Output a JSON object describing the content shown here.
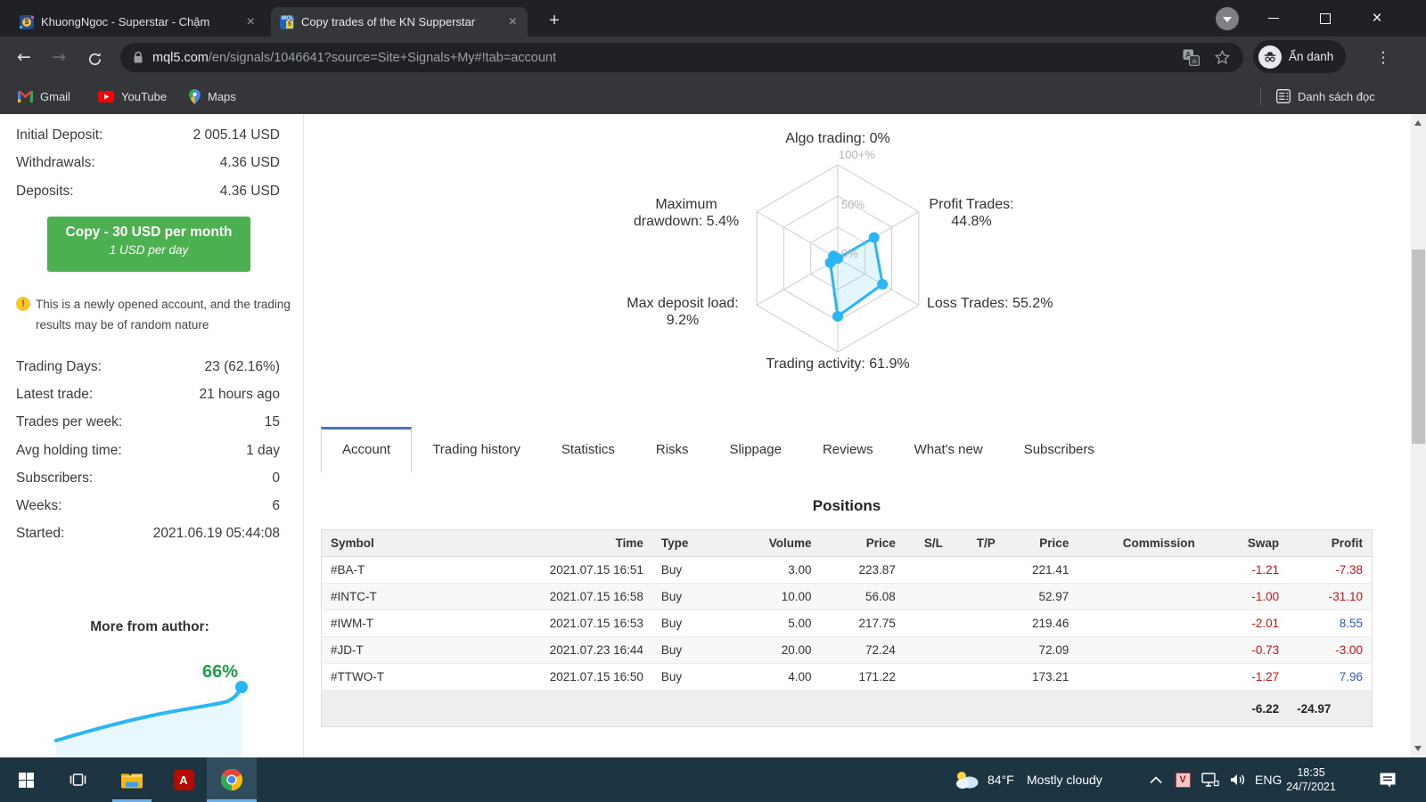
{
  "browser": {
    "tab1": {
      "title": "KhuongNgoc - Superstar - Chậm",
      "close": "×"
    },
    "tab2": {
      "title": "Copy trades of the KN Supperstar",
      "close": "×"
    },
    "new_tab": "+",
    "url_domain": "mql5.com",
    "url_path": "/en/signals/1046641?source=Site+Signals+My#!tab=account",
    "incognito_label": "Ẩn danh",
    "bookmarks": {
      "gmail": "Gmail",
      "youtube": "YouTube",
      "maps": "Maps",
      "reading_list": "Danh sách đọc"
    }
  },
  "sidebar": {
    "deposit_stats": [
      {
        "label": "Initial Deposit:",
        "value": "2 005.14 USD"
      },
      {
        "label": "Withdrawals:",
        "value": "4.36 USD"
      },
      {
        "label": "Deposits:",
        "value": "4.36 USD"
      }
    ],
    "copy_button": {
      "line1": "Copy - 30 USD per month",
      "line2": "1 USD per day"
    },
    "notice_icon": "!",
    "notice": "This is a newly opened account, and the trading results may be of random nature",
    "stats": [
      {
        "label": "Trading Days:",
        "value": "23 (62.16%)"
      },
      {
        "label": "Latest trade:",
        "value": "21 hours ago"
      },
      {
        "label": "Trades per week:",
        "value": "15"
      },
      {
        "label": "Avg holding time:",
        "value": "1 day"
      },
      {
        "label": "Subscribers:",
        "value": "0"
      },
      {
        "label": "Weeks:",
        "value": "6"
      },
      {
        "label": "Started:",
        "value": "2021.06.19 05:44:08"
      }
    ],
    "more_from_author": "More from author:",
    "growth_label": "66%"
  },
  "radar": {
    "labels": {
      "top": "Algo trading: 0%",
      "right_top_1": "Profit Trades:",
      "right_top_2": "44.8%",
      "right_bottom": "Loss Trades: 55.2%",
      "bottom": "Trading activity: 61.9%",
      "left_bottom_1": "Max deposit load:",
      "left_bottom_2": "9.2%",
      "left_top_1": "Maximum",
      "left_top_2": "drawdown: 5.4%"
    }
  },
  "page_tabs": [
    "Account",
    "Trading history",
    "Statistics",
    "Risks",
    "Slippage",
    "Reviews",
    "What's new",
    "Subscribers"
  ],
  "positions": {
    "title": "Positions",
    "columns": [
      "Symbol",
      "Time",
      "Type",
      "Volume",
      "Price",
      "S/L",
      "T/P",
      "Price",
      "Commission",
      "Swap",
      "Profit"
    ],
    "rows": [
      [
        "#BA-T",
        "2021.07.15 16:51",
        "Buy",
        "3.00",
        "223.87",
        "",
        "",
        "221.41",
        "",
        "-1.21",
        "-7.38"
      ],
      [
        "#INTC-T",
        "2021.07.15 16:58",
        "Buy",
        "10.00",
        "56.08",
        "",
        "",
        "52.97",
        "",
        "-1.00",
        "-31.10"
      ],
      [
        "#IWM-T",
        "2021.07.15 16:53",
        "Buy",
        "5.00",
        "217.75",
        "",
        "",
        "219.46",
        "",
        "-2.01",
        "8.55"
      ],
      [
        "#JD-T",
        "2021.07.23 16:44",
        "Buy",
        "20.00",
        "72.24",
        "",
        "",
        "72.09",
        "",
        "-0.73",
        "-3.00"
      ],
      [
        "#TTWO-T",
        "2021.07.15 16:50",
        "Buy",
        "4.00",
        "171.22",
        "",
        "",
        "173.21",
        "",
        "-1.27",
        "7.96"
      ]
    ],
    "totals": {
      "swap": "-6.22",
      "profit": "-24.97"
    }
  },
  "taskbar": {
    "temp": "84°F",
    "weather": "Mostly cloudy",
    "tray_v": "V",
    "lang": "ENG",
    "time": "18:35",
    "date": "24/7/2021"
  },
  "colors": {
    "radar_line": "#29b6f6",
    "copy_button_green": "#4caf50",
    "growth_green": "#1e9e4a",
    "loss_red": "#cc1111",
    "profit_blue": "#3056c8",
    "active_tab_border": "#4a72b8",
    "taskbar_bg": "#1d3543"
  },
  "chart_data": [
    {
      "type": "radar",
      "title": "Signal characteristics radar",
      "axes": [
        {
          "label": "Algo trading",
          "value": 0
        },
        {
          "label": "Profit Trades",
          "value": 44.8
        },
        {
          "label": "Loss Trades",
          "value": 55.2
        },
        {
          "label": "Trading activity",
          "value": 61.9
        },
        {
          "label": "Max deposit load",
          "value": 9.2
        },
        {
          "label": "Maximum drawdown",
          "value": 5.4
        }
      ],
      "scale": {
        "min": 0,
        "max": 100,
        "rings": [
          "0%",
          "50%",
          "100+%"
        ]
      },
      "grid": "hexagon"
    },
    {
      "type": "line",
      "name": "More from author growth curve",
      "unit": "%",
      "final_value": 66,
      "values_estimated": [
        8,
        14,
        20,
        26,
        31,
        36,
        40,
        43,
        46,
        50,
        58,
        66
      ]
    }
  ]
}
